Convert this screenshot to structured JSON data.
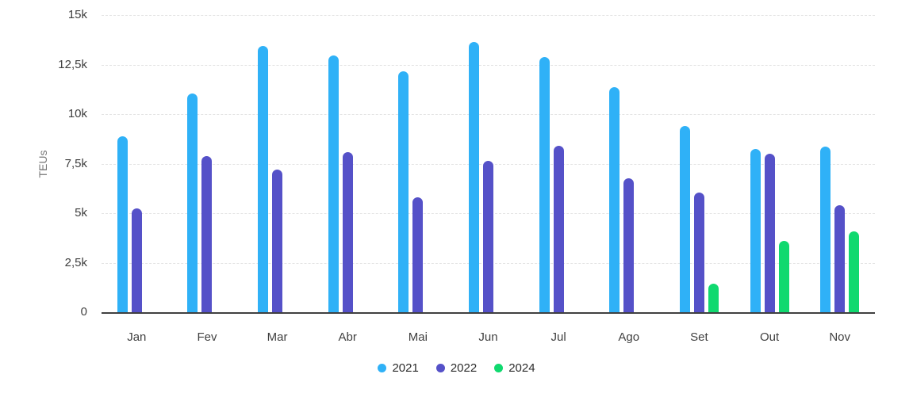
{
  "chart_data": {
    "type": "bar",
    "title": "",
    "xlabel": "",
    "ylabel": "TEUs",
    "categories": [
      "Jan",
      "Fev",
      "Mar",
      "Abr",
      "Mai",
      "Jun",
      "Jul",
      "Ago",
      "Set",
      "Out",
      "Nov"
    ],
    "series": [
      {
        "name": "2021",
        "color": "#2FB1F7",
        "values": [
          8900,
          11050,
          13450,
          12950,
          12150,
          13650,
          12900,
          11350,
          9400,
          8250,
          8350
        ]
      },
      {
        "name": "2022",
        "color": "#5551C8",
        "values": [
          5250,
          7900,
          7200,
          8100,
          5800,
          7650,
          8400,
          6750,
          6050,
          8000,
          5400
        ]
      },
      {
        "name": "2024",
        "color": "#10D96F",
        "values": [
          null,
          null,
          null,
          null,
          null,
          null,
          null,
          null,
          1450,
          3600,
          4100
        ]
      }
    ],
    "ylim": [
      0,
      15000
    ],
    "yticks": [
      {
        "value": 0,
        "label": "0"
      },
      {
        "value": 2500,
        "label": "2,5k"
      },
      {
        "value": 5000,
        "label": "5k"
      },
      {
        "value": 7500,
        "label": "7,5k"
      },
      {
        "value": 10000,
        "label": "10k"
      },
      {
        "value": 12500,
        "label": "12,5k"
      },
      {
        "value": 15000,
        "label": "15k"
      }
    ],
    "grid": true,
    "legend_position": "bottom",
    "gridline_color": "#e4e4e4",
    "axis_line_color": "#404040"
  }
}
